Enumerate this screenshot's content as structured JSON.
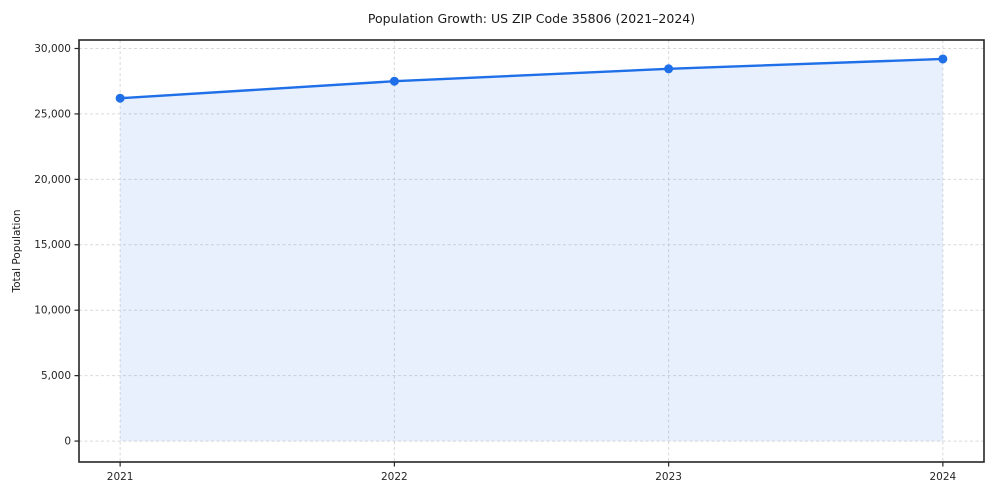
{
  "chart_data": {
    "type": "line",
    "title": "Population Growth: US ZIP Code 35806 (2021–2024)",
    "xlabel": "",
    "ylabel": "Total Population",
    "x": [
      2021,
      2022,
      2023,
      2024
    ],
    "series": [
      {
        "name": "Total Population",
        "values": [
          26200,
          27500,
          28450,
          29200
        ]
      }
    ],
    "area_fill": true,
    "fill_baseline": 0,
    "marker": "circle",
    "xticks": [
      2021,
      2022,
      2023,
      2024
    ],
    "xtick_labels": [
      "2021",
      "2022",
      "2023",
      "2024"
    ],
    "yticks": [
      0,
      5000,
      10000,
      15000,
      20000,
      25000,
      30000
    ],
    "ytick_labels": [
      "0",
      "5,000",
      "10,000",
      "15,000",
      "20,000",
      "25,000",
      "30,000"
    ],
    "xlim": [
      2020.85,
      2024.15
    ],
    "ylim": [
      -1600,
      30650
    ],
    "grid": true,
    "grid_style": "dashed",
    "legend": false,
    "colors": {
      "line": "#1f6fe8",
      "marker": "#1f6fe8",
      "fill": "#1f6fe8",
      "fill_opacity": 0.1,
      "grid": "#d9d9d9",
      "spine": "#262626",
      "tick": "#262626",
      "text": "#1a1a1a"
    }
  }
}
